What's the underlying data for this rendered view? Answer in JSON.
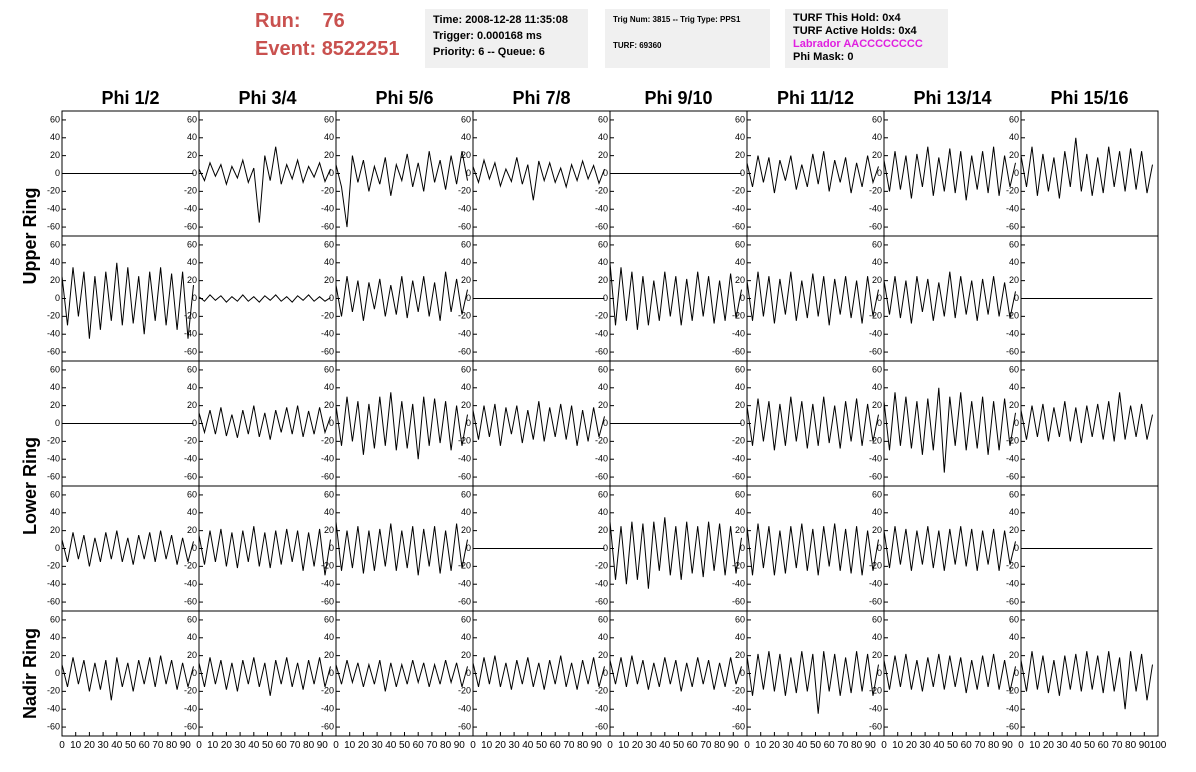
{
  "header": {
    "run_label": "Run:",
    "run": "76",
    "event_label": "Event:",
    "event": "8522251"
  },
  "info": {
    "time": "Time: 2008-12-28 11:35:08",
    "trigger": "Trigger: 0.000168 ms",
    "priority": "Priority: 6 -- Queue: 6",
    "trig_num": "Trig Num: 3815 -- Trig Type: PPS1",
    "turf": "TURF: 69360",
    "turf_hold": "TURF This Hold: 0x4",
    "turf_active": "TURF Active Holds: 0x4",
    "labrador": "Labrador AACCCCCCCC",
    "phi_mask": "Phi Mask: 0"
  },
  "chart_data": {
    "type": "line",
    "color": "#000000",
    "column_titles": [
      "Phi 1/2",
      "Phi 3/4",
      "Phi 5/6",
      "Phi 7/8",
      "Phi 9/10",
      "Phi 11/12",
      "Phi 13/14",
      "Phi 15/16"
    ],
    "row_titles": [
      "Upper Ring",
      "Lower Ring",
      "Nadir Ring"
    ],
    "xlim": [
      0,
      100
    ],
    "xticks": [
      0,
      10,
      20,
      30,
      40,
      50,
      60,
      70,
      80,
      90,
      100
    ],
    "ylim": [
      -70,
      70
    ],
    "yticks": [
      -60,
      -40,
      -20,
      0,
      20,
      40,
      60
    ],
    "x": [
      0,
      4,
      8,
      12,
      16,
      20,
      24,
      28,
      32,
      36,
      40,
      44,
      48,
      52,
      56,
      60,
      64,
      68,
      72,
      76,
      80,
      84,
      88,
      92,
      96
    ],
    "panels": [
      [
        [
          0,
          0,
          0,
          0,
          0,
          0,
          0,
          0,
          0,
          0,
          0,
          0,
          0,
          0,
          0,
          0,
          0,
          0,
          0,
          0,
          0,
          0,
          0,
          0,
          0
        ],
        [
          5,
          -8,
          12,
          -3,
          10,
          -12,
          8,
          -5,
          15,
          -10,
          6,
          -55,
          20,
          -8,
          30,
          -12,
          10,
          -6,
          15,
          -10,
          8,
          -4,
          12,
          -9,
          5
        ],
        [
          10,
          -15,
          -60,
          20,
          -10,
          15,
          -20,
          8,
          -12,
          18,
          -25,
          10,
          -8,
          22,
          -15,
          12,
          -20,
          25,
          -10,
          15,
          -18,
          20,
          -12,
          25,
          -8
        ],
        [
          8,
          -10,
          15,
          -6,
          12,
          -14,
          5,
          -9,
          18,
          -12,
          10,
          -30,
          14,
          -8,
          12,
          -10,
          6,
          -15,
          10,
          -8,
          14,
          -6,
          9,
          -11,
          5
        ],
        [
          0,
          0,
          0,
          0,
          0,
          0,
          0,
          0,
          0,
          0,
          0,
          0,
          0,
          0,
          0,
          0,
          0,
          0,
          0,
          0,
          0,
          0,
          0,
          0,
          0
        ],
        [
          12,
          -15,
          20,
          -10,
          18,
          -22,
          15,
          -8,
          20,
          -18,
          10,
          -15,
          22,
          -12,
          25,
          -20,
          15,
          -10,
          18,
          -22,
          12,
          -15,
          20,
          -10,
          8
        ],
        [
          15,
          -20,
          25,
          -18,
          20,
          -28,
          22,
          -15,
          30,
          -25,
          18,
          -20,
          28,
          -22,
          25,
          -30,
          20,
          -18,
          25,
          -22,
          30,
          -25,
          20,
          -15,
          12
        ],
        [
          20,
          -15,
          30,
          -25,
          22,
          -20,
          18,
          -28,
          25,
          -15,
          40,
          -20,
          22,
          -25,
          18,
          -22,
          30,
          -15,
          25,
          -20,
          28,
          -18,
          25,
          -22,
          10
        ]
      ],
      [
        [
          25,
          -30,
          35,
          -20,
          30,
          -45,
          25,
          -35,
          30,
          -25,
          40,
          -30,
          35,
          -28,
          25,
          -40,
          30,
          -25,
          35,
          -30,
          28,
          -35,
          30,
          -45,
          15
        ],
        [
          2,
          -3,
          4,
          -2,
          3,
          -4,
          2,
          -3,
          4,
          -3,
          2,
          -4,
          3,
          -2,
          4,
          -3,
          2,
          -4,
          3,
          -2,
          4,
          -3,
          2,
          -3,
          1
        ],
        [
          15,
          -20,
          25,
          -15,
          20,
          -25,
          18,
          -12,
          22,
          -20,
          15,
          -18,
          25,
          -22,
          20,
          -15,
          25,
          -20,
          18,
          -25,
          30,
          -15,
          22,
          -18,
          10
        ],
        [
          0,
          0,
          0,
          0,
          0,
          0,
          0,
          0,
          0,
          0,
          0,
          0,
          0,
          0,
          0,
          0,
          0,
          0,
          0,
          0,
          0,
          0,
          0,
          0,
          0
        ],
        [
          40,
          -30,
          35,
          -25,
          30,
          -35,
          25,
          -30,
          20,
          -25,
          30,
          -20,
          25,
          -30,
          22,
          -25,
          30,
          -20,
          25,
          -28,
          20,
          -25,
          28,
          -22,
          10
        ],
        [
          20,
          -25,
          30,
          -20,
          25,
          -28,
          22,
          -18,
          30,
          -25,
          20,
          -22,
          28,
          -20,
          25,
          -30,
          22,
          -18,
          25,
          -22,
          20,
          -28,
          25,
          -20,
          10
        ],
        [
          20,
          -18,
          25,
          -22,
          20,
          -28,
          25,
          -15,
          22,
          -25,
          18,
          -20,
          30,
          -22,
          25,
          -18,
          20,
          -25,
          22,
          -18,
          25,
          -20,
          18,
          -22,
          8
        ],
        [
          0,
          0,
          0,
          0,
          0,
          0,
          0,
          0,
          0,
          0,
          0,
          0,
          0,
          0,
          0,
          0,
          0,
          0,
          0,
          0,
          0,
          0,
          0,
          0,
          0
        ]
      ],
      [
        [
          0,
          0,
          0,
          0,
          0,
          0,
          0,
          0,
          0,
          0,
          0,
          0,
          0,
          0,
          0,
          0,
          0,
          0,
          0,
          0,
          0,
          0,
          0,
          0,
          0
        ],
        [
          12,
          -10,
          15,
          -12,
          18,
          -14,
          10,
          -16,
          15,
          -12,
          20,
          -15,
          12,
          -18,
          15,
          -10,
          18,
          -12,
          20,
          -15,
          14,
          -12,
          18,
          -10,
          8
        ],
        [
          20,
          -25,
          30,
          -20,
          25,
          -35,
          22,
          -28,
          30,
          -25,
          35,
          -30,
          25,
          -28,
          22,
          -40,
          30,
          -25,
          28,
          -22,
          25,
          -30,
          20,
          -25,
          10
        ],
        [
          15,
          -18,
          20,
          -15,
          22,
          -25,
          18,
          -12,
          20,
          -22,
          15,
          -18,
          25,
          -20,
          18,
          -15,
          22,
          -18,
          20,
          -25,
          15,
          -20,
          18,
          -15,
          8
        ],
        [
          0,
          0,
          0,
          0,
          0,
          0,
          0,
          0,
          0,
          0,
          0,
          0,
          0,
          0,
          0,
          0,
          0,
          0,
          0,
          0,
          0,
          0,
          0,
          0,
          0
        ],
        [
          20,
          -25,
          28,
          -20,
          25,
          -30,
          22,
          -25,
          30,
          -20,
          25,
          -28,
          22,
          -25,
          30,
          -22,
          20,
          -28,
          25,
          -20,
          28,
          -25,
          22,
          -20,
          10
        ],
        [
          25,
          -30,
          35,
          -25,
          30,
          -28,
          25,
          -35,
          28,
          -30,
          40,
          -55,
          30,
          -25,
          35,
          -30,
          25,
          -28,
          30,
          -35,
          25,
          -30,
          28,
          -25,
          12
        ],
        [
          15,
          -18,
          20,
          -15,
          22,
          -20,
          18,
          -15,
          25,
          -20,
          18,
          -22,
          20,
          -15,
          22,
          -18,
          25,
          -20,
          35,
          -18,
          20,
          -15,
          22,
          -18,
          10
        ]
      ],
      [
        [
          10,
          -15,
          18,
          -12,
          15,
          -20,
          12,
          -15,
          18,
          -12,
          20,
          -15,
          12,
          -18,
          15,
          -12,
          18,
          -15,
          20,
          -12,
          15,
          -18,
          12,
          -15,
          8
        ],
        [
          15,
          -18,
          20,
          -15,
          22,
          -20,
          18,
          -22,
          20,
          -15,
          25,
          -20,
          18,
          -22,
          20,
          -18,
          22,
          -15,
          20,
          -25,
          18,
          -20,
          22,
          -30,
          10
        ],
        [
          30,
          -25,
          20,
          -22,
          25,
          -28,
          20,
          -25,
          22,
          -20,
          28,
          -25,
          20,
          -22,
          25,
          -30,
          22,
          -20,
          25,
          -28,
          20,
          -25,
          28,
          -22,
          10
        ],
        [
          0,
          0,
          0,
          0,
          0,
          0,
          0,
          0,
          0,
          0,
          0,
          0,
          0,
          0,
          0,
          0,
          0,
          0,
          0,
          0,
          0,
          0,
          0,
          0,
          0
        ],
        [
          30,
          -35,
          25,
          -40,
          30,
          -35,
          28,
          -45,
          30,
          -25,
          35,
          -30,
          25,
          -35,
          30,
          -28,
          25,
          -32,
          30,
          -25,
          28,
          -30,
          25,
          -28,
          12
        ],
        [
          25,
          -30,
          28,
          -22,
          25,
          -30,
          20,
          -28,
          25,
          -22,
          28,
          -25,
          22,
          -30,
          25,
          -20,
          28,
          -25,
          22,
          -28,
          25,
          -30,
          20,
          -25,
          10
        ],
        [
          20,
          -22,
          25,
          -18,
          22,
          -25,
          20,
          -18,
          25,
          -22,
          20,
          -25,
          22,
          -18,
          25,
          -20,
          22,
          -25,
          20,
          -18,
          22,
          -25,
          20,
          -18,
          8
        ],
        [
          0,
          0,
          0,
          0,
          0,
          0,
          0,
          0,
          0,
          0,
          0,
          0,
          0,
          0,
          0,
          0,
          0,
          0,
          0,
          0,
          0,
          0,
          0,
          0,
          0
        ]
      ],
      [
        [
          10,
          -15,
          18,
          -12,
          15,
          -20,
          12,
          -18,
          15,
          -30,
          18,
          -15,
          12,
          -20,
          15,
          -12,
          18,
          -15,
          20,
          -12,
          15,
          -18,
          12,
          -15,
          8
        ],
        [
          12,
          -15,
          18,
          -12,
          15,
          -18,
          12,
          -20,
          15,
          -12,
          18,
          -15,
          12,
          -25,
          15,
          -12,
          18,
          -15,
          12,
          -18,
          15,
          -12,
          18,
          -15,
          8
        ],
        [
          10,
          -12,
          15,
          -10,
          12,
          -15,
          10,
          -12,
          15,
          -20,
          12,
          -15,
          10,
          -12,
          15,
          -10,
          12,
          -15,
          10,
          -12,
          15,
          -10,
          12,
          -15,
          8
        ],
        [
          12,
          -15,
          18,
          -12,
          20,
          -15,
          12,
          -18,
          15,
          -12,
          18,
          -15,
          12,
          -18,
          15,
          -12,
          20,
          -15,
          12,
          -18,
          15,
          -12,
          18,
          -15,
          8
        ],
        [
          15,
          -12,
          18,
          -15,
          20,
          -12,
          15,
          -18,
          12,
          -15,
          18,
          -12,
          15,
          -20,
          12,
          -15,
          18,
          -12,
          15,
          -18,
          12,
          -15,
          18,
          -12,
          8
        ],
        [
          20,
          -25,
          22,
          -18,
          25,
          -20,
          22,
          -25,
          18,
          -22,
          25,
          -20,
          22,
          -45,
          25,
          -20,
          22,
          -25,
          18,
          -22,
          25,
          -20,
          22,
          -25,
          10
        ],
        [
          15,
          -18,
          20,
          -15,
          22,
          -18,
          15,
          -20,
          18,
          -15,
          22,
          -18,
          20,
          -15,
          18,
          -22,
          15,
          -18,
          20,
          -15,
          22,
          -18,
          15,
          -20,
          8
        ],
        [
          15,
          -20,
          25,
          -18,
          20,
          -22,
          15,
          -25,
          20,
          -18,
          22,
          -20,
          25,
          -18,
          20,
          -22,
          25,
          -20,
          18,
          -40,
          25,
          -20,
          22,
          -30,
          10
        ]
      ]
    ]
  }
}
